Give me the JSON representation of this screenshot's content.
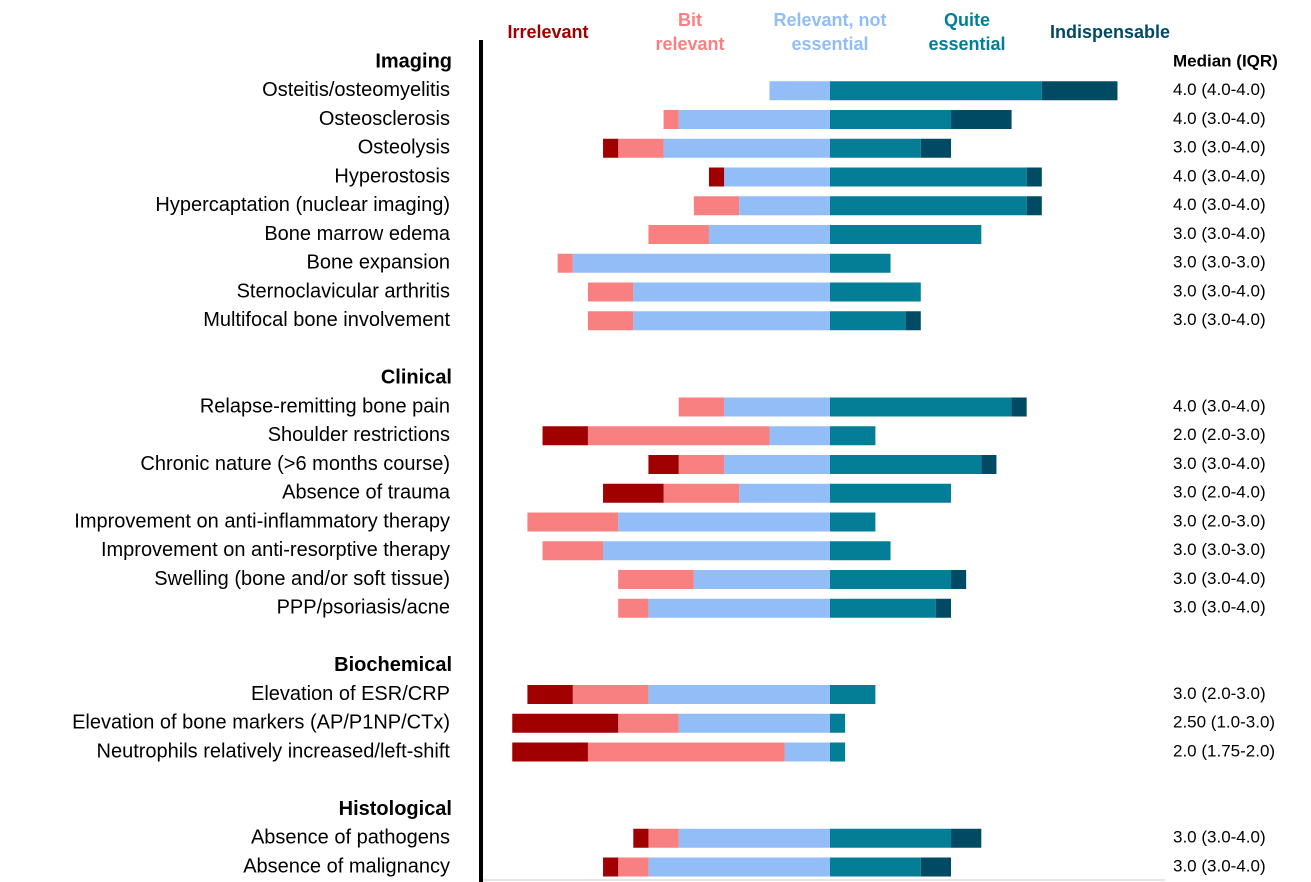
{
  "chart_data": {
    "type": "diverging-bar",
    "median_header": "Median (IQR)",
    "series": [
      {
        "name": "Irrelevant",
        "color": "#a00000",
        "values": [
          0,
          0,
          1,
          1,
          0,
          0,
          0,
          0,
          0,
          0,
          3,
          2,
          4,
          0,
          0,
          0,
          0,
          3,
          7,
          5,
          1,
          1
        ]
      },
      {
        "name": "Bit relevant",
        "color": "#f98080",
        "values": [
          0,
          1,
          3,
          0,
          3,
          4,
          1,
          3,
          3,
          3,
          12,
          3,
          5,
          6,
          4,
          5,
          2,
          5,
          4,
          13,
          2,
          2
        ]
      },
      {
        "name": "Relevant, not essential",
        "color": "#92bdf7",
        "values": [
          4,
          10,
          11,
          7,
          6,
          8,
          17,
          13,
          13,
          7,
          4,
          7,
          6,
          14,
          15,
          9,
          12,
          12,
          10,
          3,
          10,
          12
        ]
      },
      {
        "name": "Quite essential",
        "color": "#037e96",
        "values": [
          14,
          8,
          6,
          13,
          13,
          10,
          4,
          6,
          5,
          12,
          3,
          10,
          8,
          3,
          4,
          8,
          7,
          3,
          1,
          1,
          8,
          6
        ]
      },
      {
        "name": "Indispensable",
        "color": "#004a63",
        "values": [
          5,
          4,
          2,
          1,
          1,
          0,
          0,
          0,
          1,
          1,
          0,
          1,
          0,
          0,
          0,
          1,
          1,
          0,
          0,
          0,
          2,
          2
        ]
      }
    ],
    "groups": [
      {
        "name": "Imaging",
        "categories": [
          "Osteitis/osteomyelitis",
          "Osteosclerosis",
          "Osteolysis",
          "Hyperostosis",
          "Hypercaptation (nuclear imaging)",
          "Bone marrow edema",
          "Bone expansion",
          "Sternoclavicular arthritis",
          "Multifocal bone involvement"
        ],
        "medians": [
          "4.0 (4.0-4.0)",
          "4.0 (3.0-4.0)",
          "3.0 (3.0-4.0)",
          "4.0 (3.0-4.0)",
          "4.0 (3.0-4.0)",
          "3.0 (3.0-4.0)",
          "3.0 (3.0-3.0)",
          "3.0 (3.0-4.0)",
          "3.0 (3.0-4.0)"
        ]
      },
      {
        "name": "Clinical",
        "categories": [
          "Relapse-remitting bone pain",
          "Shoulder restrictions",
          "Chronic nature (>6 months course)",
          "Absence of trauma",
          "Improvement on anti-inflammatory therapy",
          "Improvement on anti-resorptive therapy",
          "Swelling (bone and/or soft tissue)",
          "PPP/psoriasis/acne"
        ],
        "medians": [
          "4.0 (3.0-4.0)",
          "2.0 (2.0-3.0)",
          "3.0 (3.0-4.0)",
          "3.0 (2.0-4.0)",
          "3.0 (2.0-3.0)",
          "3.0 (3.0-3.0)",
          "3.0 (3.0-4.0)",
          "3.0 (3.0-4.0)"
        ]
      },
      {
        "name": "Biochemical",
        "categories": [
          "Elevation of ESR/CRP",
          "Elevation of bone markers (AP/P1NP/CTx)",
          "Neutrophils relatively increased/left-shift"
        ],
        "medians": [
          "3.0 (2.0-3.0)",
          "2.50 (1.0-3.0)",
          "2.0 (1.75-2.0)"
        ]
      },
      {
        "name": "Histological",
        "categories": [
          "Absence of pathogens",
          "Absence of malignancy"
        ],
        "medians": [
          "3.0 (3.0-4.0)",
          "3.0 (3.0-4.0)"
        ]
      }
    ]
  }
}
